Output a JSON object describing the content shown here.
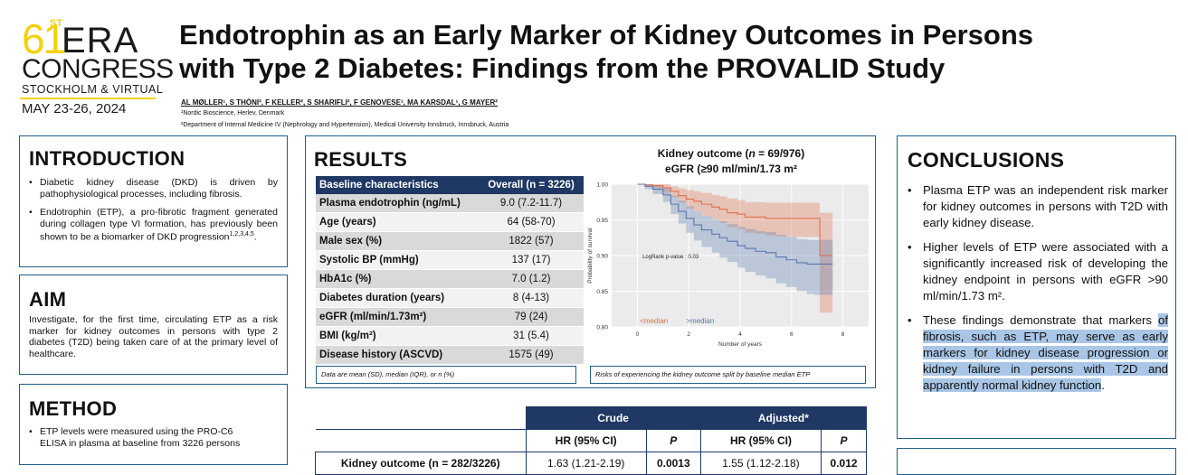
{
  "logo": {
    "number": "61",
    "ordinal": "ST",
    "era": "ERA",
    "congress": "CONGRESS",
    "city": "STOCKHOLM & VIRTUAL",
    "date": "MAY 23-26, 2024",
    "accent": "#f5d10c"
  },
  "header": {
    "title_line1": "Endotrophin as an Early Marker of Kidney Outcomes in Persons",
    "title_line2": "with Type 2 Diabetes: Findings from the PROVALID Study",
    "authors": "AL MØLLER¹, S THÖNI², F KELLER², S SHARIFLI², F GENOVESE¹, MA KARSDAL¹, G MAYER²",
    "affiliation1": "¹Nordic Bioscience, Herlev, Denmark",
    "affiliation2": "²Department of Internal Medicine IV (Nephrology and Hypertension), Medical University Innsbruck, Innsbruck, Austria"
  },
  "introduction": {
    "title": "INTRODUCTION",
    "bullets": [
      "Diabetic kidney disease (DKD) is driven by pathophysiological processes, including fibrosis.",
      "Endotrophin (ETP), a pro-fibrotic fragment generated during collagen type VI formation, has previously been shown to be a biomarker of DKD progression"
    ],
    "refs": "1,2,3,4,5",
    "refs_suffix": "."
  },
  "aim": {
    "title": "AIM",
    "text": "Investigate, for the first time, circulating ETP as a risk marker for kidney outcomes in persons with type 2 diabetes (T2D) being taken care of at the primary level of healthcare."
  },
  "method": {
    "title": "METHOD",
    "bullet_line1": "ETP levels were measured using the PRO-C6",
    "bullet_line2": "ELISA in plasma at baseline from 3226 persons"
  },
  "results": {
    "title": "RESULTS",
    "table_header": [
      "Baseline characteristics",
      "Overall (n = 3226)"
    ],
    "rows": [
      {
        "label": "Plasma endotrophin (ng/mL)",
        "value": "9.0 (7.2-11.7)"
      },
      {
        "label": "Age (years)",
        "value": "64 (58-70)"
      },
      {
        "label": "Male sex (%)",
        "value": "1822 (57)"
      },
      {
        "label": "Systolic BP (mmHg)",
        "value": "137 (17)"
      },
      {
        "label": "HbA1c (%)",
        "value": "7.0 (1.2)"
      },
      {
        "label": "Diabetes duration (years)",
        "value": "8 (4-13)"
      },
      {
        "label": "eGFR (ml/min/1.73m²)",
        "value": "79 (24)"
      },
      {
        "label": "BMI (kg/m²)",
        "value": "31 (5.4)"
      },
      {
        "label": "Disease history (ASCVD)",
        "value": "1575 (49)"
      }
    ],
    "table_note": "Data are mean (SD), median (IQR), or n (%)",
    "km_title_prefix": "Kidney outcome (",
    "km_title_n": "n",
    "km_title_suffix": " = 69/976)",
    "km_subtitle": "eGFR (≥90 ml/min/1.73 m²",
    "km_caption": "Risks of experiencing the kidney outcome split by baseline median ETP",
    "hr_table": {
      "group_crude": "Crude",
      "group_adjusted": "Adjusted*",
      "col_hr": "HR (95% CI)",
      "col_p": "P",
      "row_label": "Kidney outcome (n = 282/3226)",
      "crude_hr": "1.63 (1.21-2.19)",
      "crude_p": "0.0013",
      "adj_hr": "1.55 (1.12-2.18)",
      "adj_p": "0.012"
    }
  },
  "chart_data": {
    "type": "line",
    "title": "Kidney outcome (n = 69/976) eGFR (≥90 ml/min/1.73 m²",
    "xlabel": "Number of years",
    "ylabel": "Probability of survival",
    "xlim": [
      -1,
      9
    ],
    "ylim": [
      0.8,
      1.0
    ],
    "xticks": [
      "0",
      "2",
      "4",
      "6",
      "8"
    ],
    "yticks": [
      "0.80",
      "0.85",
      "0.90",
      "0.95",
      "1.00"
    ],
    "annotation": "LogRank p-value : 0.03",
    "background": "#ebebeb",
    "series": [
      {
        "name": "<median",
        "color": "#e0704a",
        "x": [
          0,
          0.3,
          0.6,
          1.0,
          1.3,
          1.6,
          1.9,
          2.2,
          2.5,
          2.9,
          3.2,
          3.5,
          3.9,
          4.2,
          4.6,
          5.0,
          5.4,
          5.8,
          6.2,
          6.6,
          6.9,
          7.1,
          7.6
        ],
        "y": [
          1.0,
          0.999,
          0.998,
          0.995,
          0.99,
          0.984,
          0.979,
          0.976,
          0.972,
          0.968,
          0.965,
          0.96,
          0.958,
          0.954,
          0.954,
          0.952,
          0.952,
          0.952,
          0.952,
          0.952,
          0.952,
          0.9,
          0.9
        ],
        "ci_low": [
          1.0,
          0.997,
          0.994,
          0.988,
          0.982,
          0.974,
          0.966,
          0.962,
          0.956,
          0.951,
          0.946,
          0.94,
          0.937,
          0.932,
          0.931,
          0.928,
          0.927,
          0.926,
          0.926,
          0.926,
          0.926,
          0.82,
          0.82
        ],
        "ci_high": [
          1.0,
          1.0,
          1.0,
          1.0,
          0.997,
          0.994,
          0.992,
          0.99,
          0.988,
          0.985,
          0.983,
          0.98,
          0.978,
          0.975,
          0.975,
          0.974,
          0.974,
          0.974,
          0.974,
          0.974,
          0.974,
          0.96,
          0.96
        ]
      },
      {
        "name": ">median",
        "color": "#5878b0",
        "x": [
          0,
          0.3,
          0.6,
          1.0,
          1.3,
          1.6,
          1.9,
          2.2,
          2.5,
          2.9,
          3.2,
          3.5,
          3.9,
          4.2,
          4.6,
          5.0,
          5.4,
          5.8,
          6.2,
          6.6,
          6.9,
          7.1,
          7.6
        ],
        "y": [
          1.0,
          0.997,
          0.993,
          0.985,
          0.972,
          0.962,
          0.952,
          0.943,
          0.936,
          0.93,
          0.925,
          0.92,
          0.914,
          0.91,
          0.906,
          0.904,
          0.898,
          0.894,
          0.89,
          0.888,
          0.888,
          0.888,
          0.888
        ],
        "ci_low": [
          1.0,
          0.993,
          0.986,
          0.975,
          0.958,
          0.945,
          0.932,
          0.921,
          0.912,
          0.904,
          0.897,
          0.891,
          0.883,
          0.877,
          0.872,
          0.868,
          0.861,
          0.856,
          0.85,
          0.846,
          0.845,
          0.845,
          0.845
        ],
        "ci_high": [
          1.0,
          1.0,
          0.998,
          0.994,
          0.984,
          0.977,
          0.969,
          0.962,
          0.956,
          0.951,
          0.948,
          0.944,
          0.94,
          0.937,
          0.934,
          0.933,
          0.929,
          0.926,
          0.923,
          0.922,
          0.922,
          0.922,
          0.922
        ]
      }
    ],
    "legend": [
      "<median",
      ">median"
    ]
  },
  "conclusions": {
    "title": "CONCLUSIONS",
    "b1": "Plasma ETP was an independent risk marker for kidney outcomes in persons with T2D with early kidney disease.",
    "b2": "Higher levels of ETP were associated with a significantly increased risk of developing the kidney endpoint in persons with eGFR >90 ml/min/1.73 m².",
    "b3_plain": "These findings demonstrate that markers ",
    "b3_highlight": "of fibrosis, such as ETP, may serve as early markers for kidney disease progression or kidney failure in persons with T2D and apparently normal kidney function",
    "b3_end": ".",
    "highlight_color": "#a9c6e6"
  },
  "colors": {
    "panel_border": "#1f5f8b",
    "table_header": "#1f3864"
  }
}
